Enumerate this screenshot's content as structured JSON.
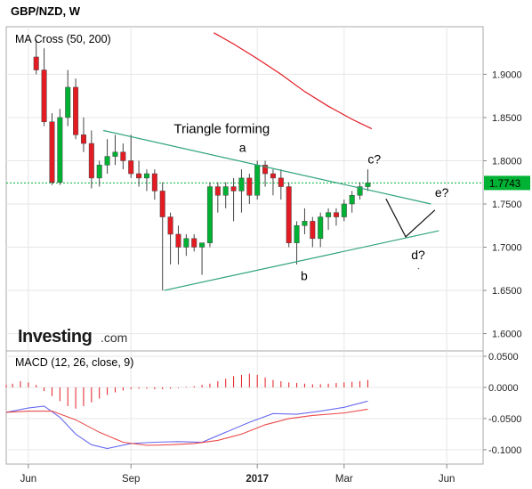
{
  "header": {
    "title": "GBP/NZD, W"
  },
  "brand": {
    "name": "Investing",
    "suffix": ".com"
  },
  "colors": {
    "up": "#00b233",
    "down": "#e31b23",
    "ma50": "#e31b23",
    "ma200": "#e31b23",
    "trendline": "#2fa37c",
    "price_line": "#00b233",
    "macd_line": "#6b6bf0",
    "signal_line": "#ec4a4a",
    "price_tag": "#00b233",
    "grid": "#e6e6e6"
  },
  "chart_data": [
    {
      "type": "candlestick",
      "indicator_label": "MA Cross (50, 200)",
      "y_ticks": [
        "1.9000",
        "1.8500",
        "1.8000",
        "1.7500",
        "1.7000",
        "1.6500",
        "1.6000"
      ],
      "y_tick_values": [
        1.9,
        1.85,
        1.8,
        1.75,
        1.7,
        1.65,
        1.6
      ],
      "ylim": [
        1.58,
        1.955
      ],
      "x_ticks": [
        "Jun",
        "Sep",
        "2017",
        "Mar",
        "Jun"
      ],
      "x_tick_weeks": [
        0,
        13,
        29,
        40,
        53
      ],
      "xlim": [
        -2.8,
        57.6
      ],
      "current_price": "1.7743",
      "current_price_value": 1.7743,
      "candles": [
        {
          "w": 1,
          "o": 1.92,
          "h": 1.94,
          "l": 1.9,
          "c": 1.905
        },
        {
          "w": 2,
          "o": 1.905,
          "h": 1.93,
          "l": 1.84,
          "c": 1.845
        },
        {
          "w": 3,
          "o": 1.845,
          "h": 1.855,
          "l": 1.772,
          "c": 1.775
        },
        {
          "w": 4,
          "o": 1.775,
          "h": 1.86,
          "l": 1.772,
          "c": 1.85
        },
        {
          "w": 5,
          "o": 1.85,
          "h": 1.905,
          "l": 1.84,
          "c": 1.885
        },
        {
          "w": 6,
          "o": 1.885,
          "h": 1.895,
          "l": 1.825,
          "c": 1.83
        },
        {
          "w": 7,
          "o": 1.83,
          "h": 1.85,
          "l": 1.81,
          "c": 1.82
        },
        {
          "w": 8,
          "o": 1.82,
          "h": 1.835,
          "l": 1.768,
          "c": 1.78
        },
        {
          "w": 9,
          "o": 1.78,
          "h": 1.8,
          "l": 1.77,
          "c": 1.795
        },
        {
          "w": 10,
          "o": 1.795,
          "h": 1.825,
          "l": 1.785,
          "c": 1.805
        },
        {
          "w": 11,
          "o": 1.805,
          "h": 1.83,
          "l": 1.795,
          "c": 1.81
        },
        {
          "w": 12,
          "o": 1.81,
          "h": 1.82,
          "l": 1.79,
          "c": 1.8
        },
        {
          "w": 13,
          "o": 1.8,
          "h": 1.83,
          "l": 1.78,
          "c": 1.785
        },
        {
          "w": 14,
          "o": 1.785,
          "h": 1.8,
          "l": 1.77,
          "c": 1.78
        },
        {
          "w": 15,
          "o": 1.78,
          "h": 1.79,
          "l": 1.765,
          "c": 1.785
        },
        {
          "w": 16,
          "o": 1.785,
          "h": 1.79,
          "l": 1.755,
          "c": 1.765
        },
        {
          "w": 17,
          "o": 1.765,
          "h": 1.775,
          "l": 1.65,
          "c": 1.735
        },
        {
          "w": 18,
          "o": 1.735,
          "h": 1.74,
          "l": 1.68,
          "c": 1.715
        },
        {
          "w": 19,
          "o": 1.715,
          "h": 1.725,
          "l": 1.68,
          "c": 1.7
        },
        {
          "w": 20,
          "o": 1.7,
          "h": 1.715,
          "l": 1.69,
          "c": 1.71
        },
        {
          "w": 21,
          "o": 1.71,
          "h": 1.715,
          "l": 1.695,
          "c": 1.7
        },
        {
          "w": 22,
          "o": 1.7,
          "h": 1.705,
          "l": 1.668,
          "c": 1.705
        },
        {
          "w": 23,
          "o": 1.705,
          "h": 1.775,
          "l": 1.7,
          "c": 1.77
        },
        {
          "w": 24,
          "o": 1.77,
          "h": 1.775,
          "l": 1.74,
          "c": 1.76
        },
        {
          "w": 25,
          "o": 1.76,
          "h": 1.775,
          "l": 1.745,
          "c": 1.77
        },
        {
          "w": 26,
          "o": 1.77,
          "h": 1.78,
          "l": 1.73,
          "c": 1.765
        },
        {
          "w": 27,
          "o": 1.765,
          "h": 1.79,
          "l": 1.74,
          "c": 1.78
        },
        {
          "w": 28,
          "o": 1.78,
          "h": 1.785,
          "l": 1.75,
          "c": 1.76
        },
        {
          "w": 29,
          "o": 1.76,
          "h": 1.8,
          "l": 1.755,
          "c": 1.795
        },
        {
          "w": 30,
          "o": 1.795,
          "h": 1.8,
          "l": 1.77,
          "c": 1.785
        },
        {
          "w": 31,
          "o": 1.785,
          "h": 1.79,
          "l": 1.76,
          "c": 1.78
        },
        {
          "w": 32,
          "o": 1.78,
          "h": 1.79,
          "l": 1.755,
          "c": 1.77
        },
        {
          "w": 33,
          "o": 1.77,
          "h": 1.775,
          "l": 1.7,
          "c": 1.705
        },
        {
          "w": 34,
          "o": 1.705,
          "h": 1.73,
          "l": 1.68,
          "c": 1.725
        },
        {
          "w": 35,
          "o": 1.725,
          "h": 1.745,
          "l": 1.715,
          "c": 1.73
        },
        {
          "w": 36,
          "o": 1.73,
          "h": 1.735,
          "l": 1.7,
          "c": 1.71
        },
        {
          "w": 37,
          "o": 1.71,
          "h": 1.74,
          "l": 1.7,
          "c": 1.735
        },
        {
          "w": 38,
          "o": 1.735,
          "h": 1.745,
          "l": 1.72,
          "c": 1.74
        },
        {
          "w": 39,
          "o": 1.74,
          "h": 1.745,
          "l": 1.725,
          "c": 1.735
        },
        {
          "w": 40,
          "o": 1.735,
          "h": 1.755,
          "l": 1.73,
          "c": 1.75
        },
        {
          "w": 41,
          "o": 1.75,
          "h": 1.765,
          "l": 1.74,
          "c": 1.76
        },
        {
          "w": 42,
          "o": 1.76,
          "h": 1.775,
          "l": 1.755,
          "c": 1.77
        },
        {
          "w": 43,
          "o": 1.77,
          "h": 1.79,
          "l": 1.765,
          "c": 1.7743
        }
      ],
      "ma_series": [
        {
          "x": [
            23.5,
            26,
            29,
            32,
            35,
            38,
            41,
            43.5
          ],
          "y": [
            1.948,
            1.935,
            1.918,
            1.9,
            1.88,
            1.863,
            1.848,
            1.837
          ]
        }
      ],
      "trendlines": [
        {
          "x": [
            9.5,
            51
          ],
          "y": [
            1.835,
            1.75
          ]
        },
        {
          "x": [
            17.2,
            52
          ],
          "y": [
            1.65,
            1.719
          ]
        }
      ],
      "price_path": {
        "x": [
          45.3,
          47.8,
          51.5
        ],
        "y": [
          1.756,
          1.712,
          1.743
        ]
      },
      "annotations": [
        {
          "text": "Triangle forming",
          "x": 24.5,
          "y": 1.832
        },
        {
          "text": "a",
          "x": 26.7,
          "y": 1.81
        },
        {
          "text": "b",
          "x": 34.5,
          "y": 1.662
        },
        {
          "text": "c?",
          "x": 43,
          "y": 1.797
        },
        {
          "text": "d?",
          "x": 48.5,
          "y": 1.686
        },
        {
          "text": "e?",
          "x": 51.5,
          "y": 1.758
        }
      ]
    },
    {
      "type": "macd",
      "indicator_label": "MACD (12, 26, close, 9)",
      "y_ticks": [
        "0.0500",
        "0.0000",
        "-0.0500",
        "-0.1000"
      ],
      "y_tick_values": [
        0.05,
        0.0,
        -0.05,
        -0.1
      ],
      "ylim": [
        -0.123,
        0.0585
      ],
      "histogram": {
        "x": [
          -2.8,
          -2,
          -1,
          0,
          1,
          2,
          3,
          4,
          5,
          6,
          7,
          8,
          9,
          10,
          11,
          12,
          13,
          14,
          15,
          16,
          17,
          18,
          19,
          20,
          21,
          22,
          23,
          24,
          25,
          26,
          27,
          28,
          29,
          30,
          31,
          32,
          33,
          34,
          35,
          36,
          37,
          38,
          39,
          40,
          41,
          42,
          43
        ],
        "y": [
          0.004,
          0.006,
          0.01,
          0.008,
          0.004,
          -0.006,
          -0.014,
          -0.022,
          -0.03,
          -0.034,
          -0.03,
          -0.024,
          -0.018,
          -0.012,
          -0.008,
          -0.005,
          -0.003,
          -0.002,
          -0.002,
          -0.003,
          -0.003,
          -0.002,
          -0.001,
          0.001,
          0.002,
          0.004,
          0.006,
          0.01,
          0.014,
          0.018,
          0.02,
          0.022,
          0.02,
          0.016,
          0.012,
          0.01,
          0.008,
          0.007,
          0.006,
          0.005,
          0.005,
          0.006,
          0.007,
          0.008,
          0.009,
          0.01,
          0.012
        ]
      },
      "series": [
        {
          "x": [
            -2.8,
            0,
            2,
            4,
            6,
            8,
            10,
            13,
            16,
            19,
            22,
            25,
            28,
            31,
            34,
            37,
            40,
            43
          ],
          "y": [
            -0.04,
            -0.033,
            -0.03,
            -0.048,
            -0.075,
            -0.092,
            -0.098,
            -0.09,
            -0.088,
            -0.087,
            -0.088,
            -0.072,
            -0.056,
            -0.042,
            -0.043,
            -0.038,
            -0.032,
            -0.022
          ]
        },
        {
          "x": [
            -2.8,
            0,
            3,
            6,
            9,
            12,
            15,
            18,
            21,
            24,
            27,
            30,
            33,
            36,
            40,
            43
          ],
          "y": [
            -0.04,
            -0.038,
            -0.038,
            -0.052,
            -0.072,
            -0.088,
            -0.093,
            -0.092,
            -0.09,
            -0.085,
            -0.075,
            -0.06,
            -0.05,
            -0.045,
            -0.041,
            -0.035
          ]
        }
      ]
    }
  ]
}
